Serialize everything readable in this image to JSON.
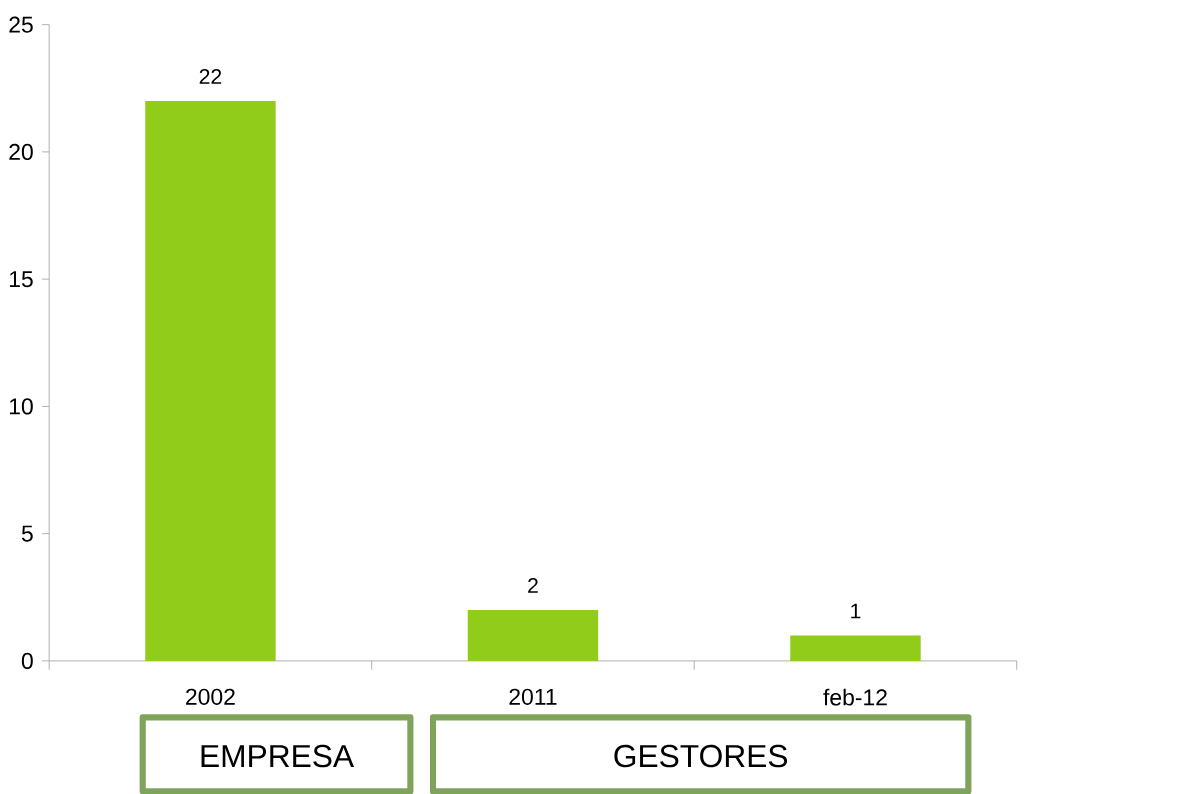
{
  "chart_data": {
    "type": "bar",
    "categories": [
      "2002",
      "2011",
      "feb-12"
    ],
    "values": [
      22,
      2,
      1
    ],
    "color": "#92cc1a",
    "ylim": [
      0,
      25
    ],
    "yticks": [
      0,
      5,
      10,
      15,
      20,
      25
    ],
    "data_labels": true,
    "annotations": [
      "EMPRESA",
      "GESTORES"
    ]
  }
}
